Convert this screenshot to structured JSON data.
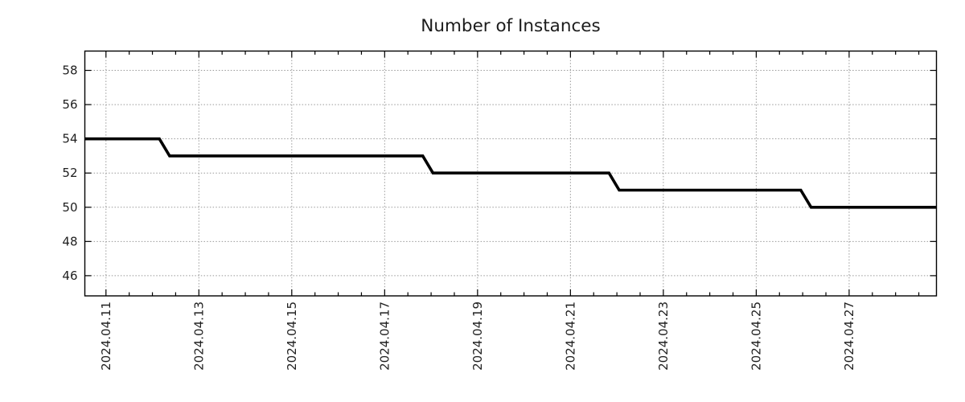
{
  "chart_data": {
    "type": "line",
    "subtype": "step",
    "title": "Number of Instances",
    "xlabel": "",
    "ylabel": "",
    "legend": "none",
    "grid": {
      "shown": true,
      "style": "dotted",
      "color": "#999999"
    },
    "background_color": "#ffffff",
    "line_color": "#000000",
    "line_width": 3.6,
    "x_axis": {
      "epoch": "2024-04-10 00:00",
      "xlim_days": [
        0.545,
        18.88
      ],
      "tick_days": [
        1,
        3,
        5,
        7,
        9,
        11,
        13,
        15,
        17
      ],
      "tick_labels": [
        "2024.04.11",
        "2024.04.13",
        "2024.04.15",
        "2024.04.17",
        "2024.04.19",
        "2024.04.21",
        "2024.04.23",
        "2024.04.25",
        "2024.04.27"
      ],
      "minor_tick_interval_days": 0.5
    },
    "y_axis": {
      "ylim": [
        44.82,
        59.13
      ],
      "ticks": [
        46,
        48,
        50,
        52,
        54,
        56,
        58
      ],
      "tick_labels": [
        "46",
        "48",
        "50",
        "52",
        "54",
        "56",
        "58"
      ]
    },
    "series": [
      {
        "name": "instances",
        "color": "#000000",
        "points": [
          {
            "t": "2024-04-10 13:00",
            "x_days": 0.545,
            "v": 54
          },
          {
            "t": "2024-04-12 03:30",
            "x_days": 2.15,
            "v": 54
          },
          {
            "t": "2024-04-12 09:00",
            "x_days": 2.37,
            "v": 53
          },
          {
            "t": "2024-04-17 19:40",
            "x_days": 7.82,
            "v": 53
          },
          {
            "t": "2024-04-18 01:00",
            "x_days": 8.04,
            "v": 52
          },
          {
            "t": "2024-04-21 20:00",
            "x_days": 11.83,
            "v": 52
          },
          {
            "t": "2024-04-22 01:10",
            "x_days": 12.05,
            "v": 51
          },
          {
            "t": "2024-04-25 23:00",
            "x_days": 15.96,
            "v": 51
          },
          {
            "t": "2024-04-26 04:20",
            "x_days": 16.18,
            "v": 50
          },
          {
            "t": "2024-04-28 21:00",
            "x_days": 18.88,
            "v": 50
          }
        ]
      }
    ]
  }
}
